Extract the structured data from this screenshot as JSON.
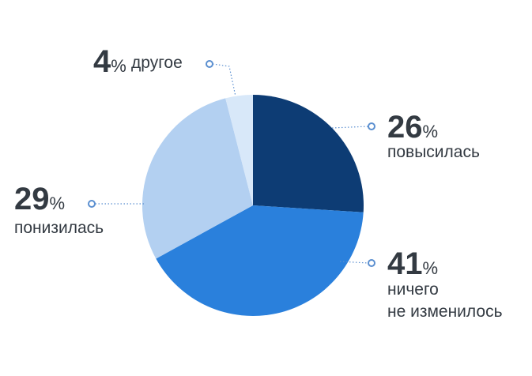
{
  "chart_data": {
    "type": "pie",
    "categories": [
      "повысилась",
      "ничего\nне изменилось",
      "понизилась",
      "другое"
    ],
    "values": [
      26,
      41,
      29,
      4
    ],
    "value_labels": [
      "26%",
      "41%",
      "29%",
      "4%"
    ],
    "colors": [
      "#0d3c74",
      "#2a80dc",
      "#b3d0f1",
      "#d8e8f9"
    ]
  }
}
